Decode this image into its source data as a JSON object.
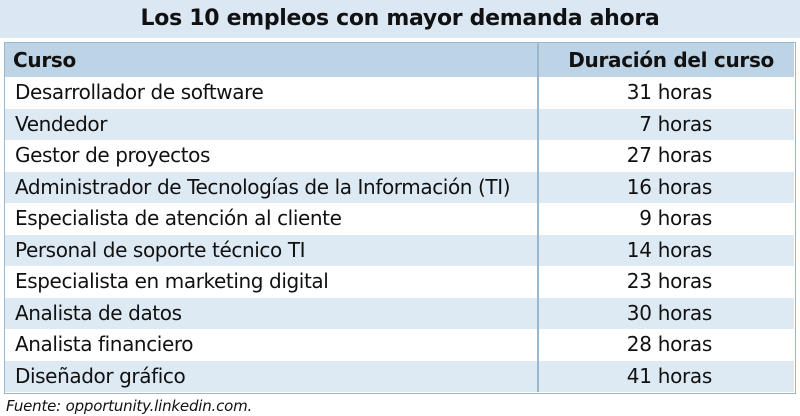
{
  "title": "Los 10 empleos con mayor demanda ahora",
  "table": {
    "headers": {
      "course": "Curso",
      "duration": "Duración del curso"
    },
    "rows": [
      {
        "course": "Desarrollador de software",
        "duration": "31 horas"
      },
      {
        "course": "Vendedor",
        "duration": "7 horas"
      },
      {
        "course": "Gestor de proyectos",
        "duration": "27 horas"
      },
      {
        "course": "Administrador de Tecnologías de la Información (TI)",
        "duration": "16 horas"
      },
      {
        "course": "Especialista de atención al cliente",
        "duration": "9 horas"
      },
      {
        "course": "Personal de soporte técnico TI",
        "duration": "14 horas"
      },
      {
        "course": "Especialista en marketing digital",
        "duration": "23 horas"
      },
      {
        "course": "Analista de datos",
        "duration": "30 horas"
      },
      {
        "course": "Analista financiero",
        "duration": "28 horas"
      },
      {
        "course": "Diseñador gráfico",
        "duration": "41 horas"
      }
    ]
  },
  "source": "Fuente: opportunity.linkedin.com.",
  "colors": {
    "title_band": "#dbe8f3",
    "header_row": "#bdd3e6",
    "alt_row": "#dde9f3",
    "border": "#9bb7ce"
  }
}
